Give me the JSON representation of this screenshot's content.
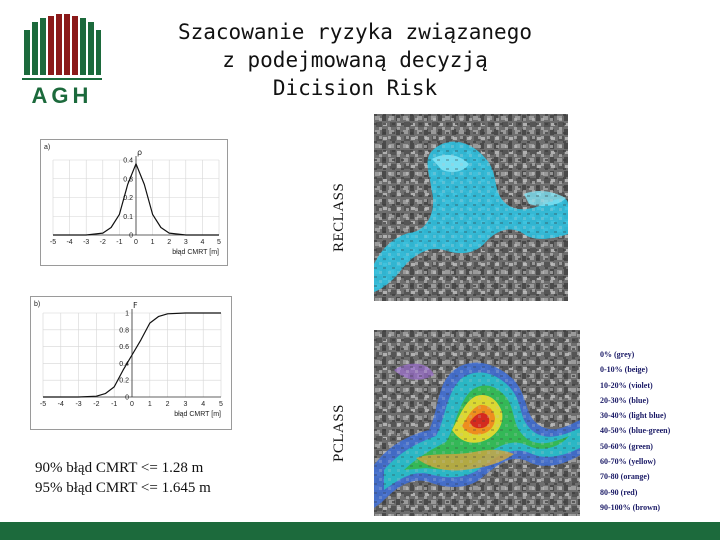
{
  "title": {
    "line1": "Szacowanie ryzyka związanego",
    "line2": "z podejmowaną decyzją",
    "line3": "Dicision Risk"
  },
  "logo": {
    "text": "AGH",
    "bar_colors": [
      "#1c6a3c",
      "#8b1a1a",
      "#1c6a3c"
    ]
  },
  "chart_a": {
    "panel_label": "a)",
    "y_axis_label": "ρ",
    "x_axis_label": "błąd CMRT [m]",
    "y_ticks": [
      "0.4",
      "0.3",
      "0.2",
      "0.1",
      "0"
    ],
    "x_ticks": [
      "-5",
      "-4",
      "-3",
      "-2",
      "-1",
      "0",
      "1",
      "2",
      "3",
      "4",
      "5"
    ]
  },
  "chart_b": {
    "panel_label": "b)",
    "y_axis_label": "F",
    "x_axis_label": "błąd CMRT [m]",
    "y_ticks": [
      "1",
      "0.8",
      "0.6",
      "0.4",
      "0.2",
      "0"
    ],
    "x_ticks": [
      "-5",
      "-4",
      "-3",
      "-2",
      "-1",
      "0",
      "1",
      "2",
      "3",
      "4",
      "5"
    ]
  },
  "chart_data": [
    {
      "type": "line",
      "title": "",
      "xlabel": "błąd CMRT [m]",
      "ylabel": "ρ",
      "xlim": [
        -5,
        5
      ],
      "ylim": [
        0,
        0.4
      ],
      "grid": true,
      "x": [
        -5,
        -4,
        -3,
        -2,
        -1.5,
        -1,
        -0.5,
        0,
        0.5,
        1,
        1.5,
        2,
        3,
        4,
        5
      ],
      "y": [
        0.0,
        0.0,
        0.0,
        0.01,
        0.04,
        0.11,
        0.27,
        0.38,
        0.27,
        0.11,
        0.04,
        0.01,
        0.0,
        0.0,
        0.0
      ]
    },
    {
      "type": "line",
      "title": "",
      "xlabel": "błąd CMRT [m]",
      "ylabel": "F",
      "xlim": [
        -5,
        5
      ],
      "ylim": [
        0,
        1
      ],
      "grid": true,
      "x": [
        -5,
        -4,
        -3,
        -2,
        -1.5,
        -1,
        -0.5,
        0,
        0.5,
        1,
        1.5,
        2,
        3,
        4,
        5
      ],
      "y": [
        0.0,
        0.0,
        0.0,
        0.01,
        0.04,
        0.12,
        0.32,
        0.5,
        0.68,
        0.88,
        0.96,
        0.99,
        1.0,
        1.0,
        1.0
      ]
    }
  ],
  "notes": {
    "line1": "90% błąd CMRT <= 1.28 m",
    "line2": "95% błąd CMRT <= 1.645 m"
  },
  "labels": {
    "reclass": "RECLASS",
    "pclass": "PCLASS"
  },
  "legend": [
    {
      "label": "0% (grey)"
    },
    {
      "label": "0-10% (beige)"
    },
    {
      "label": "10-20% (violet)"
    },
    {
      "label": "20-30% (blue)"
    },
    {
      "label": "30-40% (light blue)"
    },
    {
      "label": "40-50% (blue-green)"
    },
    {
      "label": "50-60% (green)"
    },
    {
      "label": "60-70% (yellow)"
    },
    {
      "label": "70-80 (orange)"
    },
    {
      "label": "80-90 (red)"
    },
    {
      "label": "90-100% (brown)"
    }
  ]
}
